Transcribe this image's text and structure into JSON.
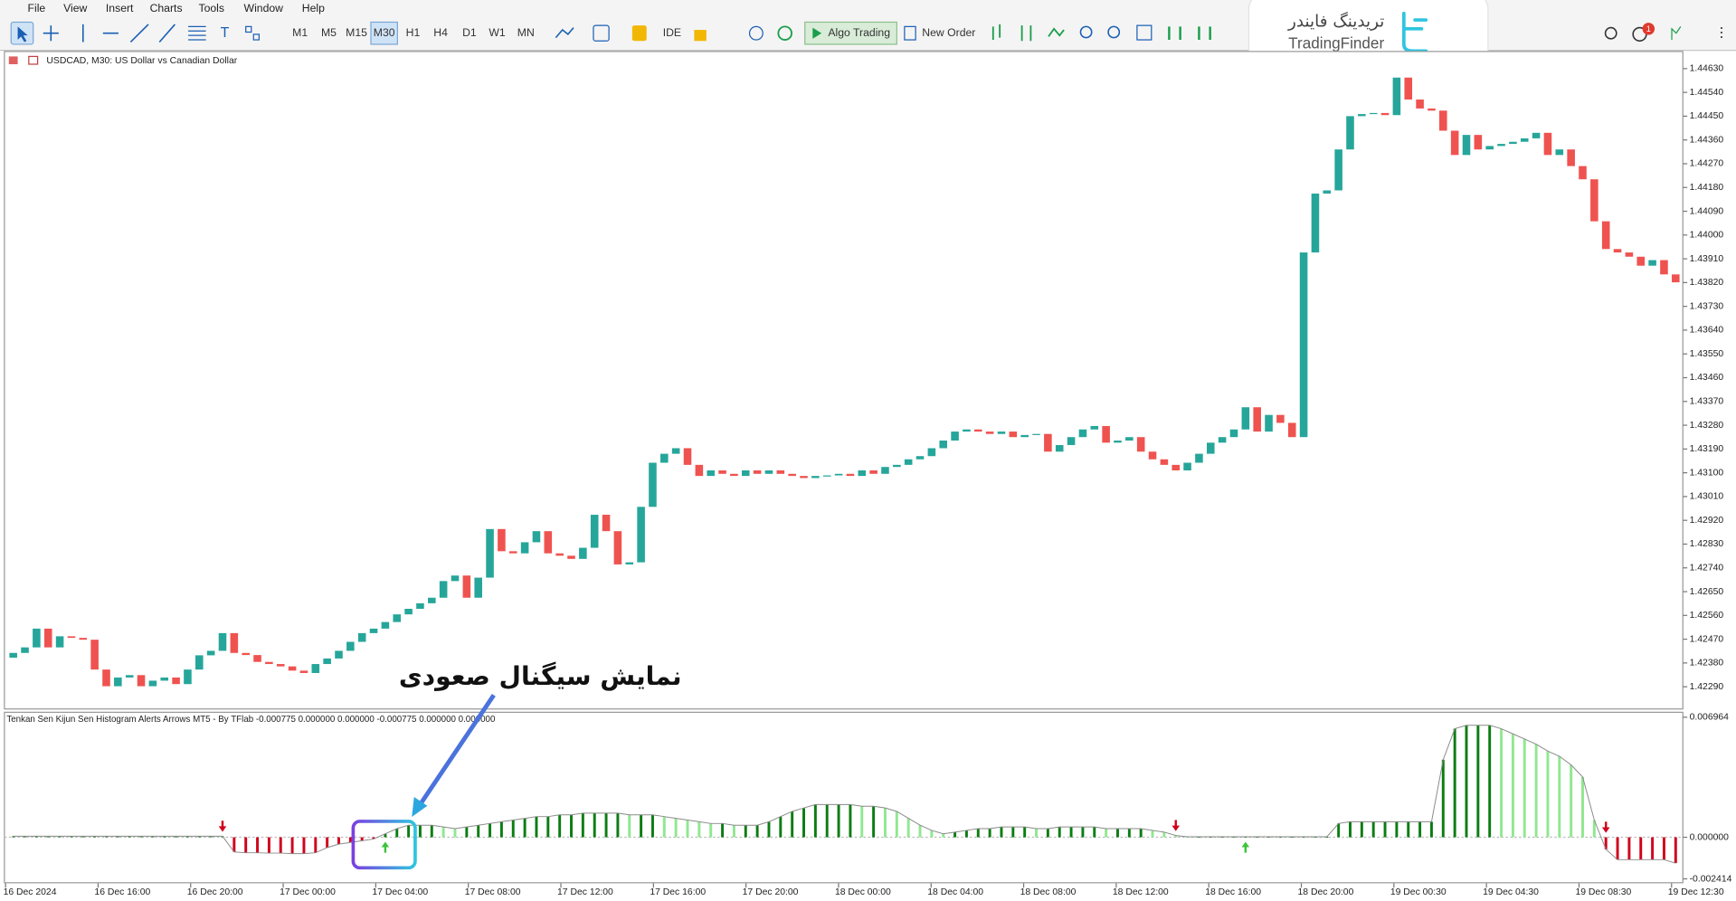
{
  "menu": [
    "File",
    "View",
    "Insert",
    "Charts",
    "Tools",
    "Window",
    "Help"
  ],
  "toolbar": {
    "timeframes": [
      "M1",
      "M5",
      "M15",
      "M30",
      "H1",
      "H4",
      "D1",
      "W1",
      "MN"
    ],
    "active_timeframe": 3,
    "ide": "IDE",
    "algo_trading": "Algo Trading",
    "new_order": "New Order",
    "notifications": 1
  },
  "logo": {
    "fa": "تریدینگ فایندر",
    "en": "TradingFinder"
  },
  "annotation": "نمایش سیگنال صعودی",
  "time_labels": [
    "16 Dec 2024",
    "16 Dec 16:00",
    "16 Dec 20:00",
    "17 Dec 00:00",
    "17 Dec 04:00",
    "17 Dec 08:00",
    "17 Dec 12:00",
    "17 Dec 16:00",
    "17 Dec 20:00",
    "18 Dec 00:00",
    "18 Dec 04:00",
    "18 Dec 08:00",
    "18 Dec 12:00",
    "18 Dec 16:00",
    "18 Dec 20:00",
    "19 Dec 00:30",
    "19 Dec 04:30",
    "19 Dec 08:30",
    "19 Dec 12:30"
  ],
  "chart_data": [
    {
      "type": "candlestick",
      "title": "USDCAD, M30:  US Dollar vs Canadian Dollar",
      "up_color": "#26a69a",
      "down_color": "#ef5350",
      "ylim": [
        1.42208,
        1.44697
      ],
      "yticks": [
        {
          "value": 1.4463,
          "label": "1.44630"
        },
        {
          "value": 1.4454,
          "label": "1.44540"
        },
        {
          "value": 1.4445,
          "label": "1.44450"
        },
        {
          "value": 1.4436,
          "label": "1.44360"
        },
        {
          "value": 1.4427,
          "label": "1.44270"
        },
        {
          "value": 1.4418,
          "label": "1.44180"
        },
        {
          "value": 1.4409,
          "label": "1.44090"
        },
        {
          "value": 1.44,
          "label": "1.44000"
        },
        {
          "value": 1.4391,
          "label": "1.43910"
        },
        {
          "value": 1.4382,
          "label": "1.43820"
        },
        {
          "value": 1.4373,
          "label": "1.43730"
        },
        {
          "value": 1.4364,
          "label": "1.43640"
        },
        {
          "value": 1.4355,
          "label": "1.43550"
        },
        {
          "value": 1.4346,
          "label": "1.43460"
        },
        {
          "value": 1.4337,
          "label": "1.43370"
        },
        {
          "value": 1.4328,
          "label": "1.43280"
        },
        {
          "value": 1.4319,
          "label": "1.43190"
        },
        {
          "value": 1.431,
          "label": "1.43100"
        },
        {
          "value": 1.4301,
          "label": "1.43010"
        },
        {
          "value": 1.4292,
          "label": "1.42920"
        },
        {
          "value": 1.4283,
          "label": "1.42830"
        },
        {
          "value": 1.4274,
          "label": "1.42740"
        },
        {
          "value": 1.4265,
          "label": "1.42650"
        },
        {
          "value": 1.4256,
          "label": "1.42560"
        },
        {
          "value": 1.4247,
          "label": "1.42470"
        },
        {
          "value": 1.4238,
          "label": "1.42380"
        },
        {
          "value": 1.4229,
          "label": "1.42290"
        }
      ],
      "open": [
        1.424,
        1.42418,
        1.42439,
        1.4251,
        1.42439,
        1.42481,
        1.42475,
        1.42468,
        1.42355,
        1.42292,
        1.42325,
        1.42334,
        1.42292,
        1.42313,
        1.42325,
        1.423,
        1.42355,
        1.42409,
        1.42426,
        1.42493,
        1.42418,
        1.4241,
        1.42384,
        1.42376,
        1.42367,
        1.42351,
        1.42342,
        1.42376,
        1.42397,
        1.42426,
        1.4246,
        1.42493,
        1.4251,
        1.42535,
        1.42564,
        1.42585,
        1.42606,
        1.42627,
        1.4269,
        1.42711,
        1.42627,
        1.42703,
        1.42887,
        1.42803,
        1.42795,
        1.42837,
        1.42879,
        1.42795,
        1.42786,
        1.42774,
        1.42816,
        1.42941,
        1.42879,
        1.42753,
        1.42761,
        1.42971,
        1.43138,
        1.43172,
        1.43193,
        1.4313,
        1.43088,
        1.43109,
        1.43096,
        1.43088,
        1.43109,
        1.43096,
        1.43109,
        1.43096,
        1.43088,
        1.4308,
        1.43088,
        1.4309,
        1.43096,
        1.43088,
        1.43109,
        1.43096,
        1.43122,
        1.4313,
        1.43151,
        1.43163,
        1.43193,
        1.43222,
        1.43256,
        1.43264,
        1.43256,
        1.43247,
        1.43256,
        1.43235,
        1.43243,
        1.43247,
        1.4318,
        1.43205,
        1.43235,
        1.43264,
        1.43277,
        1.43214,
        1.43222,
        1.43235,
        1.4318,
        1.43151,
        1.4313,
        1.43109,
        1.43138,
        1.43172,
        1.43214,
        1.43235,
        1.43264,
        1.43348,
        1.43256,
        1.43319,
        1.43289,
        1.43235,
        1.43934,
        1.44157,
        1.44169,
        1.44324,
        1.4445,
        1.44458,
        1.44462,
        1.44454,
        1.44596,
        1.44513,
        1.44479,
        1.44471,
        1.44395,
        1.44303,
        1.44379,
        1.44324,
        1.44337,
        1.44345,
        1.44353,
        1.44366,
        1.44387,
        1.44303,
        1.44324,
        1.44261,
        1.44211,
        1.44052,
        1.43947,
        1.43934,
        1.43918,
        1.43884,
        1.43905,
        1.43851
      ],
      "close": [
        1.42418,
        1.42439,
        1.4251,
        1.42439,
        1.42481,
        1.42475,
        1.42468,
        1.42355,
        1.42292,
        1.42325,
        1.42334,
        1.42292,
        1.42313,
        1.42325,
        1.423,
        1.42355,
        1.42409,
        1.42426,
        1.42493,
        1.42418,
        1.4241,
        1.42384,
        1.42376,
        1.42367,
        1.42351,
        1.42342,
        1.42376,
        1.42397,
        1.42426,
        1.4246,
        1.42493,
        1.4251,
        1.42535,
        1.42564,
        1.42585,
        1.42606,
        1.42627,
        1.4269,
        1.42711,
        1.42627,
        1.42703,
        1.42887,
        1.42803,
        1.42795,
        1.42837,
        1.42879,
        1.42795,
        1.42786,
        1.42774,
        1.42816,
        1.42941,
        1.42879,
        1.42753,
        1.42761,
        1.42971,
        1.43138,
        1.43172,
        1.43193,
        1.4313,
        1.43088,
        1.43109,
        1.43096,
        1.43088,
        1.43109,
        1.43096,
        1.43109,
        1.43096,
        1.43088,
        1.4308,
        1.43088,
        1.4309,
        1.43096,
        1.43088,
        1.43109,
        1.43096,
        1.43122,
        1.4313,
        1.43151,
        1.43163,
        1.43193,
        1.43222,
        1.43256,
        1.43264,
        1.43256,
        1.43247,
        1.43256,
        1.43235,
        1.43243,
        1.43247,
        1.4318,
        1.43205,
        1.43235,
        1.43264,
        1.43277,
        1.43214,
        1.43222,
        1.43235,
        1.4318,
        1.43151,
        1.4313,
        1.43109,
        1.43138,
        1.43172,
        1.43214,
        1.43235,
        1.43264,
        1.43348,
        1.43256,
        1.43319,
        1.43289,
        1.43235,
        1.43934,
        1.44157,
        1.44169,
        1.44324,
        1.4445,
        1.44458,
        1.44462,
        1.44454,
        1.44596,
        1.44513,
        1.44479,
        1.44471,
        1.44395,
        1.44303,
        1.44379,
        1.44324,
        1.44337,
        1.44345,
        1.44353,
        1.44366,
        1.44387,
        1.44303,
        1.44324,
        1.44261,
        1.44211,
        1.44052,
        1.43947,
        1.43934,
        1.43918,
        1.43884,
        1.43905,
        1.43851,
        1.43821
      ]
    },
    {
      "type": "histogram",
      "title": "Tenkan Sen Kijun Sen Histogram Alerts Arrows MT5 - By TFlab -0.000775 0.000000 0.000000 -0.000775 0.000000 0.000000",
      "rising_color": "#0b7d12",
      "falling_color": "#90e890",
      "negative_color": "#d0021b",
      "line_color": "#8a8a8a",
      "ylim": [
        -0.002414,
        0.006964
      ],
      "yticks": [
        0.006964,
        {
          "value": 0,
          "label": "0.000000"
        },
        -0.002414
      ],
      "values": [
        6e-05,
        6e-05,
        6e-05,
        6e-05,
        6e-05,
        6e-05,
        6e-05,
        6e-05,
        6e-05,
        6e-05,
        6e-05,
        6e-05,
        6e-05,
        6e-05,
        6e-05,
        6e-05,
        6e-05,
        6e-05,
        6e-05,
        -0.00085,
        -0.0009,
        -0.0009,
        -0.00092,
        -0.00092,
        -0.00095,
        -0.00095,
        -0.0009,
        -0.0006,
        -0.0004,
        -0.0003,
        -0.0002,
        -0.0001,
        0.0002,
        0.0005,
        0.0007,
        0.0007,
        0.0007,
        0.0006,
        0.0005,
        0.0006,
        0.0007,
        0.0008,
        0.0009,
        0.001,
        0.0011,
        0.0012,
        0.0012,
        0.0013,
        0.0013,
        0.0014,
        0.0014,
        0.0014,
        0.0014,
        0.0013,
        0.0013,
        0.0013,
        0.0012,
        0.0011,
        0.001,
        0.0009,
        0.0008,
        0.0008,
        0.0007,
        0.0007,
        0.0007,
        0.0009,
        0.0012,
        0.0015,
        0.0017,
        0.0019,
        0.0019,
        0.0019,
        0.0019,
        0.0018,
        0.0018,
        0.0017,
        0.0015,
        0.0011,
        0.0007,
        0.0004,
        0.0002,
        0.0003,
        0.0004,
        0.0005,
        0.0005,
        0.0006,
        0.0006,
        0.0006,
        0.0005,
        0.0005,
        0.0006,
        0.0006,
        0.0006,
        0.0006,
        0.0005,
        0.0005,
        0.0005,
        0.0005,
        0.0004,
        0.0003,
        0.0001,
        3e-05,
        3e-05,
        3e-05,
        3e-05,
        3e-05,
        3e-05,
        3e-05,
        3e-05,
        3e-05,
        3e-05,
        3e-05,
        3e-05,
        3e-05,
        0.0008,
        0.0009,
        0.0009,
        0.0009,
        0.0009,
        0.0009,
        0.0009,
        0.0009,
        0.0009,
        0.0045,
        0.0063,
        0.0065,
        0.0065,
        0.0065,
        0.0063,
        0.006,
        0.0057,
        0.0054,
        0.005,
        0.0047,
        0.0042,
        0.0035,
        0.001,
        -0.0007,
        -0.0013,
        -0.0013,
        -0.0013,
        -0.0013,
        -0.0013,
        -0.0015
      ],
      "signals": [
        {
          "index": 18,
          "direction": "down"
        },
        {
          "index": 32,
          "direction": "up"
        },
        {
          "index": 100,
          "direction": "down"
        },
        {
          "index": 106,
          "direction": "up"
        },
        {
          "index": 137,
          "direction": "down"
        }
      ],
      "up_arrow_color": "#3cc43c",
      "down_arrow_color": "#d0021b"
    }
  ]
}
